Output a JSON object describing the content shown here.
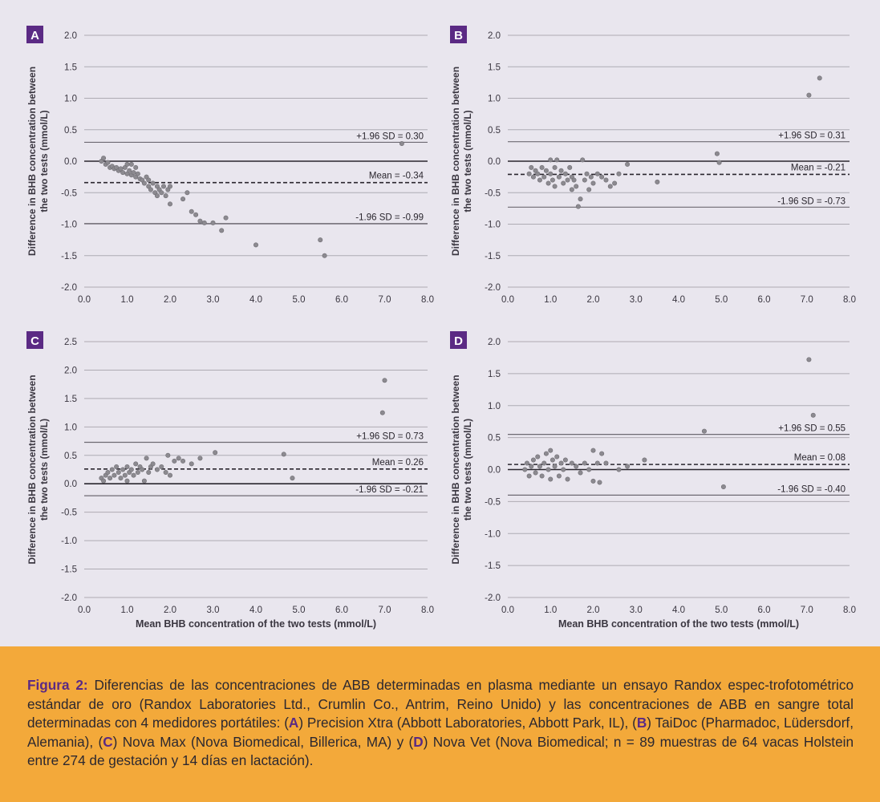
{
  "chart_data": [
    {
      "type": "scatter",
      "panel": "A",
      "xlabel": "",
      "ylabel": "Difference in BHB concentration between the two tests (mmol/L)",
      "xlim": [
        0,
        8
      ],
      "ylim": [
        -2,
        2
      ],
      "xticks": [
        "0.0",
        "1.0",
        "2.0",
        "3.0",
        "4.0",
        "5.0",
        "6.0",
        "7.0",
        "8.0"
      ],
      "yticks": [
        "2.0",
        "1.5",
        "1.0",
        "0.5",
        "0.0",
        "-0.5",
        "-1.0",
        "-1.5",
        "-2.0"
      ],
      "grid": true,
      "lines": {
        "upper": {
          "value": 0.3,
          "label": "+1.96 SD = 0.30"
        },
        "mean": {
          "value": -0.34,
          "label": "Mean = -0.34"
        },
        "lower": {
          "value": -0.99,
          "label": "-1.96 SD = -0.99"
        }
      },
      "points": [
        [
          0.4,
          0.0
        ],
        [
          0.45,
          0.05
        ],
        [
          0.5,
          -0.05
        ],
        [
          0.55,
          -0.02
        ],
        [
          0.6,
          -0.1
        ],
        [
          0.65,
          -0.08
        ],
        [
          0.7,
          -0.12
        ],
        [
          0.75,
          -0.1
        ],
        [
          0.8,
          -0.15
        ],
        [
          0.85,
          -0.12
        ],
        [
          0.9,
          -0.18
        ],
        [
          0.95,
          -0.1
        ],
        [
          1.0,
          -0.2
        ],
        [
          1.0,
          -0.05
        ],
        [
          1.05,
          -0.15
        ],
        [
          1.1,
          -0.22
        ],
        [
          1.1,
          -0.05
        ],
        [
          1.15,
          -0.18
        ],
        [
          1.2,
          -0.25
        ],
        [
          1.2,
          -0.1
        ],
        [
          1.25,
          -0.2
        ],
        [
          1.3,
          -0.28
        ],
        [
          1.35,
          -0.3
        ],
        [
          1.4,
          -0.35
        ],
        [
          1.45,
          -0.25
        ],
        [
          1.5,
          -0.4
        ],
        [
          1.5,
          -0.3
        ],
        [
          1.55,
          -0.45
        ],
        [
          1.6,
          -0.35
        ],
        [
          1.65,
          -0.5
        ],
        [
          1.7,
          -0.4
        ],
        [
          1.7,
          -0.55
        ],
        [
          1.75,
          -0.45
        ],
        [
          1.8,
          -0.5
        ],
        [
          1.85,
          -0.4
        ],
        [
          1.9,
          -0.55
        ],
        [
          1.95,
          -0.45
        ],
        [
          2.0,
          -0.4
        ],
        [
          2.0,
          -0.68
        ],
        [
          2.3,
          -0.6
        ],
        [
          2.4,
          -0.5
        ],
        [
          2.5,
          -0.8
        ],
        [
          2.6,
          -0.85
        ],
        [
          2.7,
          -0.95
        ],
        [
          2.8,
          -0.98
        ],
        [
          3.0,
          -0.98
        ],
        [
          3.2,
          -1.1
        ],
        [
          3.3,
          -0.9
        ],
        [
          4.0,
          -1.33
        ],
        [
          5.5,
          -1.25
        ],
        [
          5.6,
          -1.5
        ],
        [
          7.4,
          0.28
        ]
      ]
    },
    {
      "type": "scatter",
      "panel": "B",
      "xlabel": "",
      "ylabel": "Difference in BHB concentration between the two tests (mmol/L)",
      "xlim": [
        0,
        8
      ],
      "ylim": [
        -2,
        2
      ],
      "xticks": [
        "0.0",
        "1.0",
        "2.0",
        "3.0",
        "4.0",
        "5.0",
        "6.0",
        "7.0",
        "8.0"
      ],
      "yticks": [
        "2.0",
        "1.5",
        "1.0",
        "0.5",
        "0.0",
        "-0.5",
        "-1.0",
        "-1.5",
        "-2.0"
      ],
      "grid": true,
      "lines": {
        "upper": {
          "value": 0.31,
          "label": "+1.96 SD = 0.31"
        },
        "mean": {
          "value": -0.21,
          "label": "Mean = -0.21"
        },
        "lower": {
          "value": -0.73,
          "label": "-1.96 SD = -0.73"
        }
      },
      "points": [
        [
          0.5,
          -0.2
        ],
        [
          0.55,
          -0.1
        ],
        [
          0.6,
          -0.25
        ],
        [
          0.65,
          -0.15
        ],
        [
          0.7,
          -0.2
        ],
        [
          0.75,
          -0.3
        ],
        [
          0.8,
          -0.1
        ],
        [
          0.85,
          -0.25
        ],
        [
          0.9,
          -0.15
        ],
        [
          0.95,
          -0.35
        ],
        [
          1.0,
          -0.2
        ],
        [
          1.0,
          0.02
        ],
        [
          1.05,
          -0.3
        ],
        [
          1.1,
          -0.1
        ],
        [
          1.1,
          -0.4
        ],
        [
          1.15,
          0.02
        ],
        [
          1.2,
          -0.25
        ],
        [
          1.25,
          -0.15
        ],
        [
          1.3,
          -0.35
        ],
        [
          1.35,
          -0.2
        ],
        [
          1.4,
          -0.3
        ],
        [
          1.45,
          -0.1
        ],
        [
          1.5,
          -0.45
        ],
        [
          1.5,
          -0.25
        ],
        [
          1.55,
          -0.3
        ],
        [
          1.6,
          -0.4
        ],
        [
          1.65,
          -0.72
        ],
        [
          1.7,
          -0.6
        ],
        [
          1.75,
          0.02
        ],
        [
          1.8,
          -0.3
        ],
        [
          1.85,
          -0.2
        ],
        [
          1.9,
          -0.45
        ],
        [
          1.95,
          -0.25
        ],
        [
          2.0,
          -0.35
        ],
        [
          2.1,
          -0.2
        ],
        [
          2.2,
          -0.25
        ],
        [
          2.3,
          -0.3
        ],
        [
          2.4,
          -0.4
        ],
        [
          2.5,
          -0.35
        ],
        [
          2.6,
          -0.2
        ],
        [
          2.8,
          -0.05
        ],
        [
          3.5,
          -0.33
        ],
        [
          4.9,
          0.12
        ],
        [
          4.95,
          -0.02
        ],
        [
          7.05,
          1.05
        ],
        [
          7.3,
          1.32
        ]
      ]
    },
    {
      "type": "scatter",
      "panel": "C",
      "xlabel": "Mean BHB concentration of the two tests (mmol/L)",
      "ylabel": "Difference in BHB concentration between the two tests (mmol/L)",
      "xlim": [
        0,
        8
      ],
      "ylim": [
        -2,
        2.5
      ],
      "xticks": [
        "0.0",
        "1.0",
        "2.0",
        "3.0",
        "4.0",
        "5.0",
        "6.0",
        "7.0",
        "8.0"
      ],
      "yticks": [
        "2.5",
        "2.0",
        "1.5",
        "1.0",
        "0.5",
        "0.0",
        "-0.5",
        "-1.0",
        "-1.5",
        "-2.0"
      ],
      "grid": true,
      "lines": {
        "upper": {
          "value": 0.73,
          "label": "+1.96 SD = 0.73"
        },
        "mean": {
          "value": 0.26,
          "label": "Mean = 0.26"
        },
        "lower": {
          "value": -0.21,
          "label": "-1.96 SD = -0.21"
        }
      },
      "points": [
        [
          0.4,
          0.1
        ],
        [
          0.45,
          0.05
        ],
        [
          0.5,
          0.15
        ],
        [
          0.55,
          0.2
        ],
        [
          0.6,
          0.1
        ],
        [
          0.65,
          0.25
        ],
        [
          0.7,
          0.15
        ],
        [
          0.75,
          0.3
        ],
        [
          0.8,
          0.2
        ],
        [
          0.85,
          0.1
        ],
        [
          0.9,
          0.25
        ],
        [
          0.95,
          0.15
        ],
        [
          1.0,
          0.3
        ],
        [
          1.0,
          0.05
        ],
        [
          1.05,
          0.2
        ],
        [
          1.1,
          0.25
        ],
        [
          1.15,
          0.15
        ],
        [
          1.2,
          0.35
        ],
        [
          1.25,
          0.2
        ],
        [
          1.3,
          0.3
        ],
        [
          1.35,
          0.25
        ],
        [
          1.4,
          0.05
        ],
        [
          1.45,
          0.45
        ],
        [
          1.5,
          0.2
        ],
        [
          1.55,
          0.3
        ],
        [
          1.6,
          0.35
        ],
        [
          1.7,
          0.25
        ],
        [
          1.8,
          0.3
        ],
        [
          1.9,
          0.2
        ],
        [
          1.95,
          0.5
        ],
        [
          2.0,
          0.15
        ],
        [
          2.1,
          0.4
        ],
        [
          2.2,
          0.45
        ],
        [
          2.3,
          0.4
        ],
        [
          2.5,
          0.35
        ],
        [
          2.7,
          0.45
        ],
        [
          3.05,
          0.55
        ],
        [
          4.65,
          0.52
        ],
        [
          4.85,
          0.1
        ],
        [
          6.95,
          1.25
        ],
        [
          7.0,
          1.82
        ]
      ]
    },
    {
      "type": "scatter",
      "panel": "D",
      "xlabel": "Mean BHB concentration of the two tests (mmol/L)",
      "ylabel": "Difference in BHB concentration between the two tests (mmol/L)",
      "xlim": [
        0,
        8
      ],
      "ylim": [
        -2,
        2
      ],
      "xticks": [
        "0.0",
        "1.0",
        "2.0",
        "3.0",
        "4.0",
        "5.0",
        "6.0",
        "7.0",
        "8.0"
      ],
      "yticks": [
        "2.0",
        "1.5",
        "1.0",
        "0.5",
        "0.0",
        "-0.5",
        "-1.0",
        "-1.5",
        "-2.0"
      ],
      "grid": true,
      "lines": {
        "upper": {
          "value": 0.55,
          "label": "+1.96 SD = 0.55"
        },
        "mean": {
          "value": 0.08,
          "label": "Mean = 0.08"
        },
        "lower": {
          "value": -0.4,
          "label": "-1.96 SD = -0.40"
        }
      },
      "points": [
        [
          0.4,
          0.0
        ],
        [
          0.45,
          0.1
        ],
        [
          0.5,
          -0.1
        ],
        [
          0.55,
          0.05
        ],
        [
          0.6,
          0.15
        ],
        [
          0.65,
          -0.05
        ],
        [
          0.7,
          0.2
        ],
        [
          0.75,
          0.05
        ],
        [
          0.8,
          -0.1
        ],
        [
          0.85,
          0.1
        ],
        [
          0.9,
          0.25
        ],
        [
          0.95,
          0.0
        ],
        [
          1.0,
          0.3
        ],
        [
          1.0,
          -0.15
        ],
        [
          1.05,
          0.15
        ],
        [
          1.1,
          0.05
        ],
        [
          1.15,
          0.2
        ],
        [
          1.2,
          -0.1
        ],
        [
          1.25,
          0.1
        ],
        [
          1.3,
          0.0
        ],
        [
          1.35,
          0.15
        ],
        [
          1.4,
          -0.15
        ],
        [
          1.5,
          0.1
        ],
        [
          1.6,
          0.05
        ],
        [
          1.7,
          -0.05
        ],
        [
          1.8,
          0.1
        ],
        [
          1.9,
          0.0
        ],
        [
          2.0,
          0.3
        ],
        [
          2.0,
          -0.18
        ],
        [
          2.1,
          0.1
        ],
        [
          2.15,
          -0.2
        ],
        [
          2.2,
          0.25
        ],
        [
          2.3,
          0.1
        ],
        [
          2.6,
          0.0
        ],
        [
          2.8,
          0.05
        ],
        [
          3.2,
          0.15
        ],
        [
          4.6,
          0.6
        ],
        [
          5.05,
          -0.27
        ],
        [
          7.05,
          1.72
        ],
        [
          7.15,
          0.85
        ]
      ]
    }
  ],
  "panel_letters": [
    "A",
    "B",
    "C",
    "D"
  ],
  "colors": {
    "accent": "#5b2a84",
    "caption_bg": "#f3a93a",
    "figure_bg": "#e9e6ee",
    "points": "#8c8a90"
  },
  "caption": {
    "heading": "Figura 2:",
    "part1": " Diferencias de las concentraciones de ABB determinadas en plasma mediante un ensayo Randox espec-trofotométrico estándar de oro (Randox Laboratories Ltd., Crumlin Co., Antrim, Reino Unido) y las concentraciones de ABB en sangre total determinadas con 4 medidores portátiles: (",
    "A": "A",
    "part2": ") Precision Xtra (Abbott Laboratories, Abbott Park, IL), (",
    "B": "B",
    "part3": ") TaiDoc (Pharmadoc, Lüdersdorf, Alemania), (",
    "C": "C",
    "part4": ") Nova Max (Nova Biomedical, Billerica, MA) y (",
    "D": "D",
    "part5": ") Nova Vet (Nova Biomedical; n = 89 muestras de 64 vacas Holstein entre 274  de gestación y 14 días en lactación)."
  }
}
